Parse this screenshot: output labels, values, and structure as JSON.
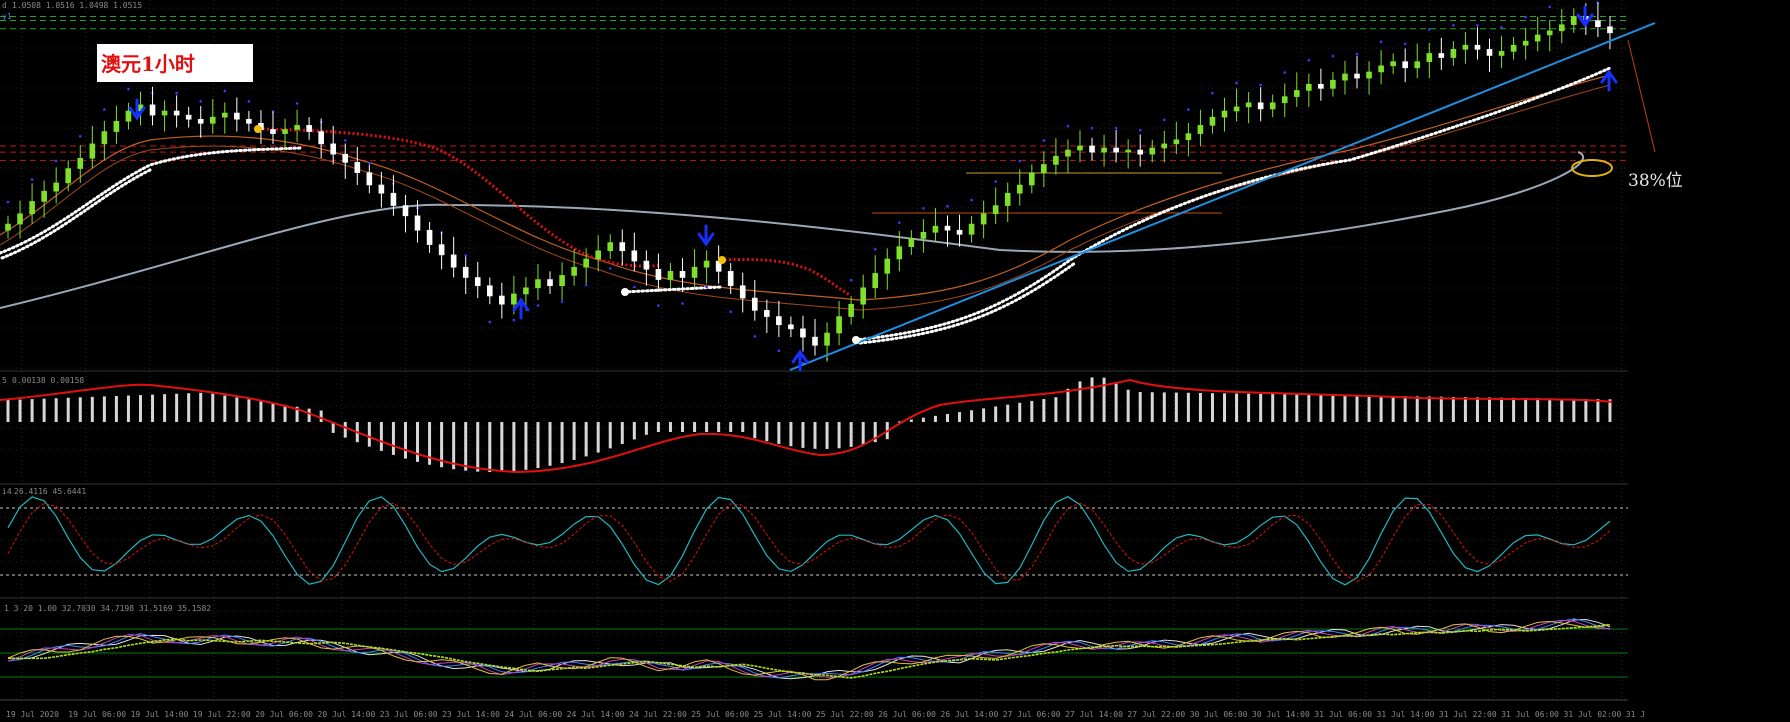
{
  "chart_title": "澳元1小时",
  "annotation_38": "38%位",
  "price_header": "1.0508 1.0516 1.0498 1.0515",
  "price_symbol": "d",
  "price_sub": "y1",
  "macd_header": "0.00138 0.00158",
  "macd_sym": "5",
  "stoch_header": "26.4116 45.6441",
  "stoch_sym": "i4",
  "rsi_header": "1 3 20 1.00 32.7030 34.7198 31.5169 35.1582",
  "x_labels": [
    "19 Jul 2020",
    "19 Jul 06:00",
    "19 Jul 14:00",
    "19 Jul 22:00",
    "20 Jul 06:00",
    "20 Jul 14:00",
    "23 Jul 06:00",
    "23 Jul 14:00",
    "24 Jul 06:00",
    "24 Jul 14:00",
    "24 Jul 22:00",
    "25 Jul 06:00",
    "25 Jul 14:00",
    "25 Jul 22:00",
    "26 Jul 06:00",
    "26 Jul 14:00",
    "27 Jul 06:00",
    "27 Jul 14:00",
    "27 Jul 22:00",
    "30 Jul 06:00",
    "30 Jul 14:00",
    "31 Jul 06:00",
    "31 Jul 14:00",
    "31 Jul 22:00",
    "31 Jul 06:00",
    "31 Jul 02:00",
    "31 J"
  ],
  "colors": {
    "bull": "#7fe02a",
    "bear": "#ffffff",
    "red": "#e01010",
    "blue": "#1e8fe0",
    "trend": "#1e8fe0",
    "ma_slow": "#9aa8b8",
    "sar": "#3a3aff",
    "arrow": "#1530ff",
    "grid": "#2a2a2a"
  },
  "chart_data": {
    "type": "candlestick",
    "title": "澳元1小时",
    "closes": [
      1.0431,
      1.0436,
      1.0442,
      1.0447,
      1.0451,
      1.0458,
      1.0463,
      1.047,
      1.0476,
      1.0481,
      1.0486,
      1.0489,
      1.0484,
      1.0486,
      1.0484,
      1.0482,
      1.048,
      1.0483,
      1.0485,
      1.0482,
      1.048,
      1.0477,
      1.0475,
      1.0477,
      1.0479,
      1.0476,
      1.047,
      1.0465,
      1.0461,
      1.0456,
      1.045,
      1.0446,
      1.044,
      1.0435,
      1.0428,
      1.0421,
      1.0416,
      1.041,
      1.0405,
      1.0401,
      1.0396,
      1.0392,
      1.0397,
      1.04,
      1.0404,
      1.0401,
      1.0406,
      1.041,
      1.0414,
      1.0418,
      1.0422,
      1.0418,
      1.0413,
      1.0409,
      1.0404,
      1.0408,
      1.0405,
      1.041,
      1.0413,
      1.0408,
      1.0401,
      1.0395,
      1.0389,
      1.0386,
      1.0382,
      1.038,
      1.0376,
      1.0372,
      1.0378,
      1.0386,
      1.0392,
      1.04,
      1.0407,
      1.0414,
      1.042,
      1.0424,
      1.0427,
      1.043,
      1.0428,
      1.0426,
      1.0431,
      1.0436,
      1.044,
      1.0446,
      1.045,
      1.0456,
      1.046,
      1.0464,
      1.0467,
      1.0469,
      1.0466,
      1.0468,
      1.0466,
      1.0467,
      1.0465,
      1.0468,
      1.047,
      1.0472,
      1.0475,
      1.0479,
      1.0483,
      1.0486,
      1.0488,
      1.049,
      1.0487,
      1.049,
      1.0493,
      1.0496,
      1.0499,
      1.0497,
      1.0501,
      1.0504,
      1.0502,
      1.0505,
      1.0508,
      1.051,
      1.0507,
      1.051,
      1.0514,
      1.0512,
      1.0516,
      1.0518,
      1.0516,
      1.0513,
      1.0515,
      1.0518,
      1.052,
      1.0523,
      1.0525,
      1.0528,
      1.0532,
      1.053,
      1.0527,
      1.0524
    ],
    "ylim": [
      1.036,
      1.054
    ],
    "levels": {
      "top1": 1.0532,
      "top2": 1.053,
      "top3": 1.0526,
      "mid1": 1.0469,
      "mid2": 1.0466,
      "mid3": 1.0462
    }
  }
}
